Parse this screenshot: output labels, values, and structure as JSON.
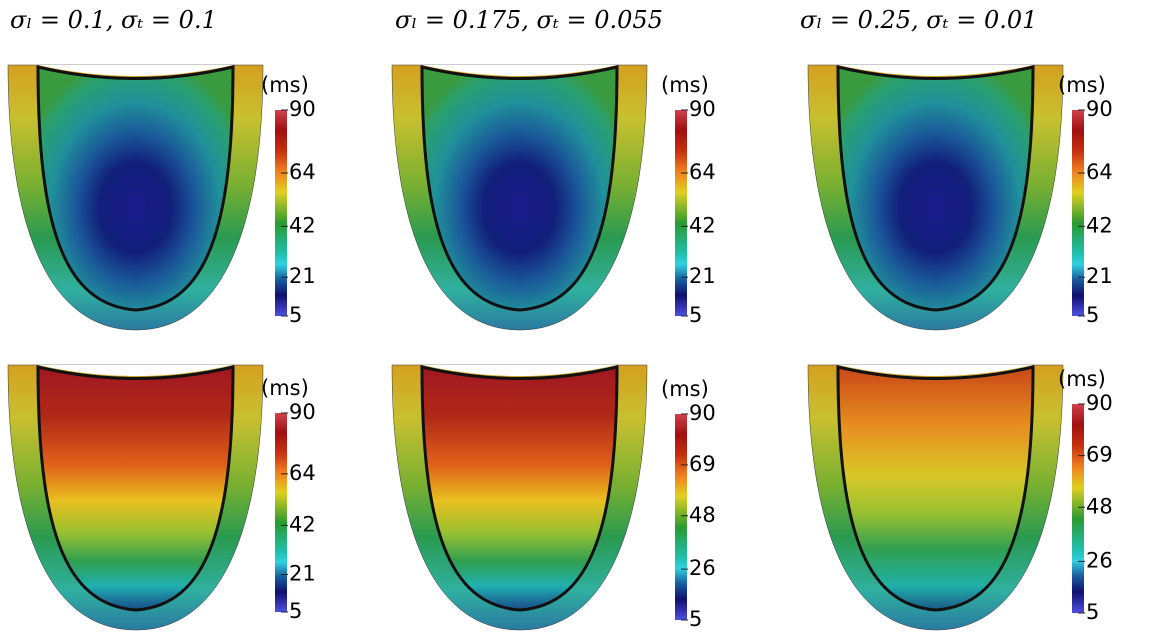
{
  "columns": [
    {
      "title": "σₗ = 0.1, σₜ = 0.1"
    },
    {
      "title": "σₗ = 0.175, σₜ = 0.055"
    },
    {
      "title": "σₗ = 0.25, σₜ = 0.01"
    }
  ],
  "colorbars": [
    {
      "unit": "(ms)",
      "range": [
        5,
        90
      ],
      "ticks": [
        90,
        64,
        42,
        21,
        5
      ]
    },
    {
      "unit": "(ms)",
      "range": [
        5,
        90
      ],
      "ticks": [
        90,
        64,
        42,
        21,
        5
      ]
    },
    {
      "unit": "(ms)",
      "range": [
        5,
        90
      ],
      "ticks": [
        90,
        64,
        42,
        21,
        5
      ]
    },
    {
      "unit": "(ms)",
      "range": [
        5,
        90
      ],
      "ticks": [
        90,
        64,
        42,
        21,
        5
      ]
    },
    {
      "unit": "(ms)",
      "range": [
        5,
        90
      ],
      "ticks": [
        90,
        69,
        48,
        26,
        5
      ]
    },
    {
      "unit": "(ms)",
      "range": [
        5,
        90
      ],
      "ticks": [
        90,
        69,
        48,
        26,
        5
      ]
    }
  ]
}
